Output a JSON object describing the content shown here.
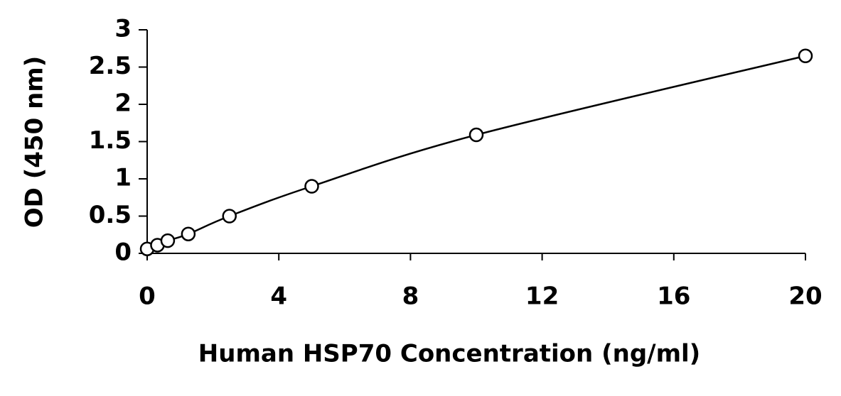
{
  "chart_data": {
    "type": "scatter",
    "x_label": "Human HSP70 Concentration (ng/ml)",
    "y_label": "OD (450 nm)",
    "x": [
      0,
      0.3125,
      0.625,
      1.25,
      2.5,
      5,
      10,
      20
    ],
    "values": [
      0.06,
      0.11,
      0.17,
      0.26,
      0.5,
      0.9,
      1.59,
      2.65
    ],
    "color": "#000000",
    "xlim": [
      0,
      20
    ],
    "xticks": [
      0,
      4,
      8,
      12,
      16,
      20
    ],
    "ylim": [
      0,
      3
    ],
    "yticks": [
      0,
      0.5,
      1,
      1.5,
      2,
      2.5,
      3
    ]
  }
}
